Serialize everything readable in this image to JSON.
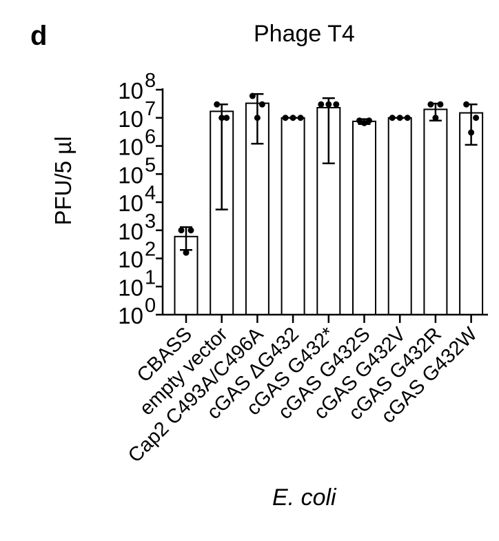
{
  "panel_label": "d",
  "chart_data": {
    "type": "bar",
    "title": "Phage T4",
    "ylabel": "PFU/5 µl",
    "xlabel": "E. coli",
    "yscale": "log",
    "ylim": [
      1,
      100000000
    ],
    "y_ticks": [
      {
        "value": 1,
        "base": "10",
        "exp": "0"
      },
      {
        "value": 10,
        "base": "10",
        "exp": "1"
      },
      {
        "value": 100,
        "base": "10",
        "exp": "2"
      },
      {
        "value": 1000,
        "base": "10",
        "exp": "3"
      },
      {
        "value": 10000,
        "base": "10",
        "exp": "4"
      },
      {
        "value": 100000,
        "base": "10",
        "exp": "5"
      },
      {
        "value": 1000000,
        "base": "10",
        "exp": "6"
      },
      {
        "value": 10000000,
        "base": "10",
        "exp": "7"
      },
      {
        "value": 100000000,
        "base": "10",
        "exp": "8"
      }
    ],
    "grid": false,
    "bar_fill": "#ffffff",
    "bar_edge": "#000000",
    "point_color": "#000000",
    "categories": [
      "CBASS",
      "empty vector",
      "Cap2 C493A/C496A",
      "cGAS ΔG432",
      "cGAS G432*",
      "cGAS G432S",
      "cGAS G432V",
      "cGAS G432R",
      "cGAS G432W"
    ],
    "values": [
      600,
      17000000,
      33000000,
      10000000,
      23000000,
      7500000,
      10000000,
      20000000,
      15000000
    ],
    "error_bars": [
      {
        "low": 200,
        "high": 1300
      },
      {
        "low": 5500,
        "high": 30000000
      },
      {
        "low": 1200000,
        "high": 70000000
      },
      {
        "low": 10000000,
        "high": 10000000
      },
      {
        "low": 240000,
        "high": 50000000
      },
      {
        "low": 6000000,
        "high": 9000000
      },
      {
        "low": 10000000,
        "high": 10000000
      },
      {
        "low": 8000000,
        "high": 32000000
      },
      {
        "low": 1100000,
        "high": 30000000
      }
    ],
    "points": [
      [
        1000,
        1000,
        160
      ],
      [
        30000000,
        10000000,
        10000000
      ],
      [
        60000000,
        30000000,
        10000000
      ],
      [
        10000000,
        10000000,
        10000000
      ],
      [
        30000000,
        30000000,
        30000000
      ],
      [
        8000000,
        8000000,
        6500000
      ],
      [
        10000000,
        10000000,
        10000000
      ],
      [
        30000000,
        30000000,
        10000000
      ],
      [
        30000000,
        10000000,
        3000000
      ]
    ]
  }
}
